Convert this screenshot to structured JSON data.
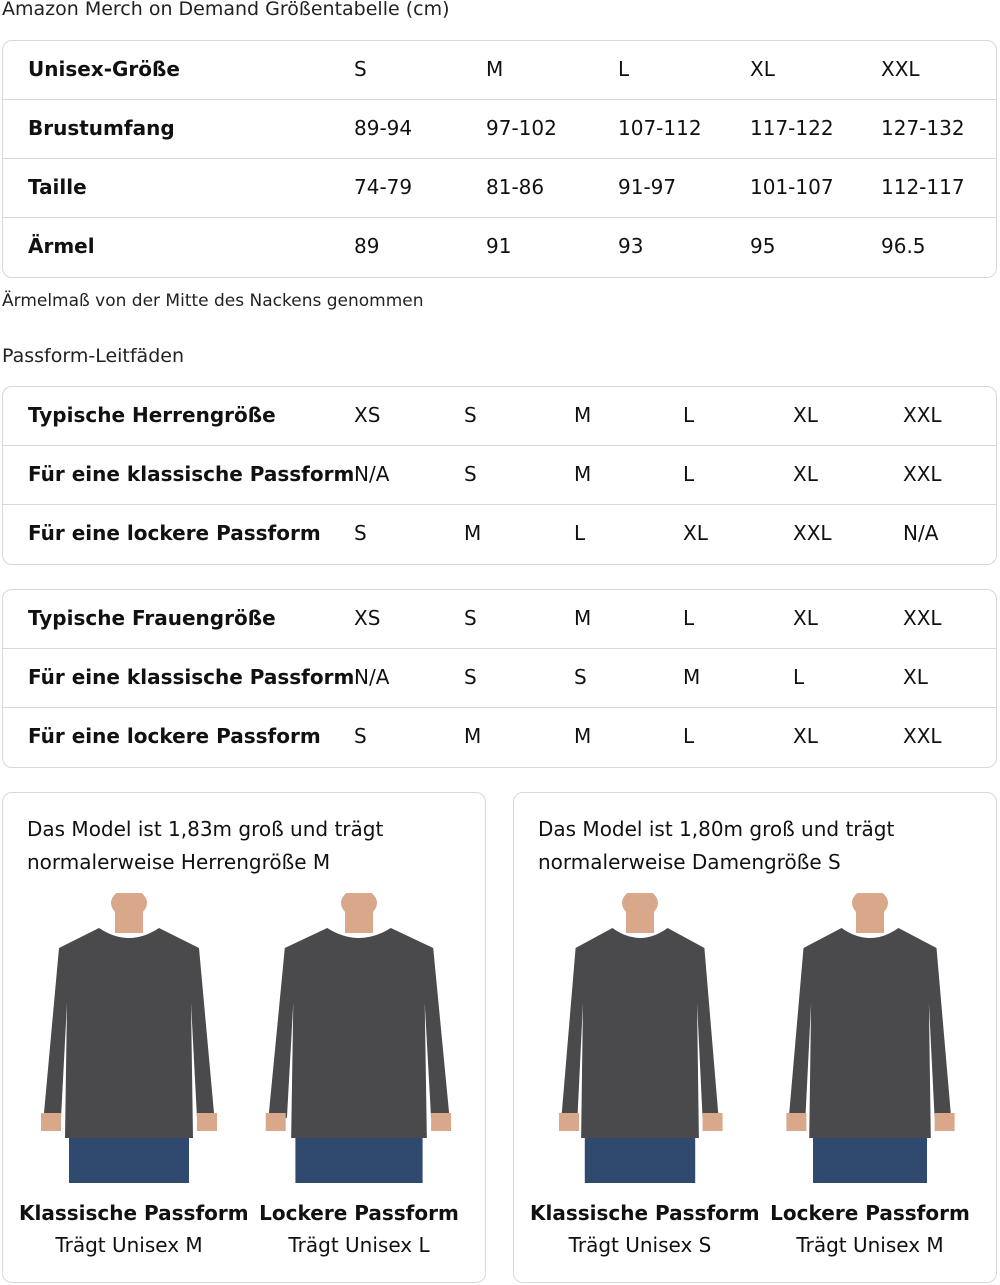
{
  "title": "Amazon Merch on Demand Größentabelle (cm)",
  "size_table": {
    "rows": [
      {
        "label": "Unisex-Größe",
        "values": [
          "S",
          "M",
          "L",
          "XL",
          "XXL"
        ]
      },
      {
        "label": "Brustumfang",
        "values": [
          "89-94",
          "97-102",
          "107-112",
          "117-122",
          "127-132"
        ]
      },
      {
        "label": "Taille",
        "values": [
          "74-79",
          "81-86",
          "91-97",
          "101-107",
          "112-117"
        ]
      },
      {
        "label": "Ärmel",
        "values": [
          "89",
          "91",
          "93",
          "95",
          "96.5"
        ]
      }
    ]
  },
  "note": "Ärmelmaß von der Mitte des Nackens genommen",
  "fit_title": "Passform-Leitfäden",
  "men_table": {
    "rows": [
      {
        "label": "Typische Herrengröße",
        "values": [
          "XS",
          "S",
          "M",
          "L",
          "XL",
          "XXL"
        ]
      },
      {
        "label": "Für eine klassische Passform",
        "values": [
          "N/A",
          "S",
          "M",
          "L",
          "XL",
          "XXL"
        ]
      },
      {
        "label": "Für eine lockere Passform",
        "values": [
          "S",
          "M",
          "L",
          "XL",
          "XXL",
          "N/A"
        ]
      }
    ]
  },
  "women_table": {
    "rows": [
      {
        "label": "Typische Frauengröße",
        "values": [
          "XS",
          "S",
          "M",
          "L",
          "XL",
          "XXL"
        ]
      },
      {
        "label": "Für eine klassische Passform",
        "values": [
          "N/A",
          "S",
          "S",
          "M",
          "L",
          "XL"
        ]
      },
      {
        "label": "Für eine lockere Passform",
        "values": [
          "S",
          "M",
          "M",
          "L",
          "XL",
          "XXL"
        ]
      }
    ]
  },
  "cards": [
    {
      "caption": "Das Model ist 1,83m groß und trägt normalerweise Herrengröße M",
      "figures": [
        {
          "title": "Klassische Passform",
          "subtitle": "Trägt Unisex M"
        },
        {
          "title": "Lockere Passform",
          "subtitle": "Trägt Unisex L"
        }
      ]
    },
    {
      "caption": "Das Model ist 1,80m groß und trägt normalerweise Damengröße S",
      "figures": [
        {
          "title": "Klassische Passform",
          "subtitle": "Trägt Unisex S"
        },
        {
          "title": "Lockere Passform",
          "subtitle": "Trägt Unisex M"
        }
      ]
    }
  ],
  "colors": {
    "border": "#d5d9d9",
    "sweatshirt": "#4a4a4c",
    "jeans": "#2f4a6e",
    "skin": "#d9a88a"
  }
}
